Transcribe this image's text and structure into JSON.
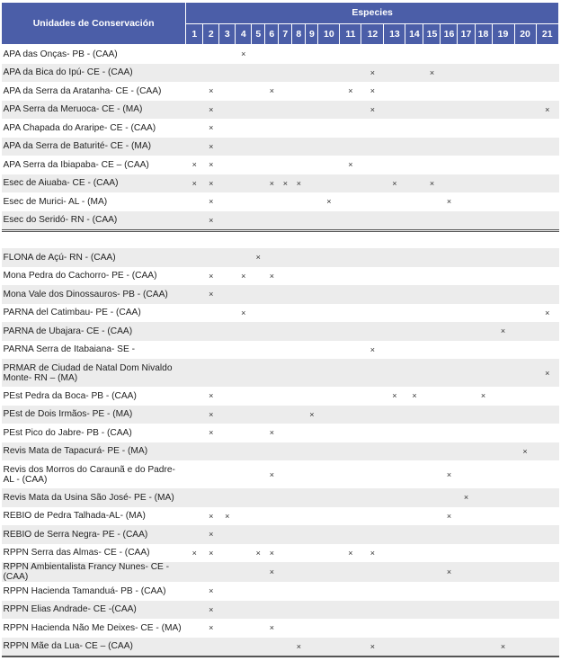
{
  "header": {
    "label_column": "Unidades de Conservación",
    "species_group": "Especies",
    "species_numbers": [
      "1",
      "2",
      "3",
      "4",
      "5",
      "6",
      "7",
      "8",
      "9",
      "10",
      "11",
      "12",
      "13",
      "14",
      "15",
      "16",
      "17",
      "18",
      "19",
      "20",
      "21"
    ]
  },
  "mark_symbol": "×",
  "colors": {
    "header_bg": "#4b5ea8",
    "row_alt": "#ececec"
  },
  "sections": [
    {
      "rows": [
        {
          "name": "APA das Onças- PB - (CAA)",
          "marks": [
            4
          ]
        },
        {
          "name": "APA da Bica do Ipú- CE - (CAA)",
          "marks": [
            12,
            15
          ]
        },
        {
          "name": "APA da Serra da Aratanha- CE - (CAA)",
          "marks": [
            2,
            6,
            11,
            12
          ]
        },
        {
          "name": "APA Serra da Meruoca- CE - (MA)",
          "marks": [
            2,
            12,
            21
          ]
        },
        {
          "name": "APA Chapada do Araripe- CE - (CAA)",
          "marks": [
            2
          ]
        },
        {
          "name": "APA da Serra de Baturité- CE - (MA)",
          "marks": [
            2
          ]
        },
        {
          "name": "APA Serra da Ibiapaba- CE – (CAA)",
          "marks": [
            1,
            2,
            11
          ]
        },
        {
          "name": "Esec de Aiuaba- CE - (CAA)",
          "marks": [
            1,
            2,
            6,
            7,
            8,
            13,
            15
          ]
        },
        {
          "name": "Esec de Murici- AL - (MA)",
          "marks": [
            2,
            10,
            16
          ]
        },
        {
          "name": "Esec do Seridó- RN - (CAA)",
          "marks": [
            2
          ]
        }
      ]
    },
    {
      "rows": [
        {
          "name": "FLONA de Açú- RN - (CAA)",
          "marks": [
            5
          ]
        },
        {
          "name": "Mona Pedra do Cachorro- PE - (CAA)",
          "marks": [
            2,
            4,
            6
          ]
        },
        {
          "name": "Mona Vale dos Dinossauros- PB - (CAA)",
          "marks": [
            2
          ]
        },
        {
          "name": "PARNA del Catimbau- PE - (CAA)",
          "marks": [
            4,
            21
          ]
        },
        {
          "name": "PARNA de Ubajara- CE - (CAA)",
          "marks": [
            19
          ]
        },
        {
          "name": "PARNA Serra de Itabaiana- SE -",
          "marks": [
            12
          ]
        },
        {
          "name": "PRMAR de Ciudad de Natal Dom Nivaldo Monte- RN – (MA)",
          "marks": [
            21
          ],
          "tall": true
        },
        {
          "name": "PEst Pedra da Boca- PB - (CAA)",
          "marks": [
            2,
            13,
            14,
            18
          ]
        },
        {
          "name": "PEst de Dois Irmãos- PE - (MA)",
          "marks": [
            2,
            9
          ]
        },
        {
          "name": "PEst Pico do Jabre- PB - (CAA)",
          "marks": [
            2,
            6
          ]
        },
        {
          "name": "Revis Mata de Tapacurá- PE - (MA)",
          "marks": [
            20
          ]
        },
        {
          "name": "Revis dos Morros do Caraunã e do Padre- AL - (CAA)",
          "marks": [
            6,
            16
          ],
          "tall": true
        },
        {
          "name": "Revis Mata da Usina São José- PE - (MA)",
          "marks": [
            17
          ]
        },
        {
          "name": "REBIO de Pedra Talhada-AL- (MA)",
          "marks": [
            2,
            3,
            16
          ]
        },
        {
          "name": "REBIO de Serra Negra- PE - (CAA)",
          "marks": [
            2
          ]
        },
        {
          "name": "RPPN Serra das Almas- CE - (CAA)",
          "marks": [
            1,
            2,
            5,
            6,
            11,
            12
          ]
        },
        {
          "name": "RPPN Ambientalista Francy Nunes- CE - (CAA)",
          "marks": [
            6,
            16
          ]
        },
        {
          "name": "RPPN Hacienda Tamanduá- PB - (CAA)",
          "marks": [
            2
          ]
        },
        {
          "name": "RPPN Elias Andrade- CE -(CAA)",
          "marks": [
            2
          ]
        },
        {
          "name": "RPPN Hacienda Não Me Deixes- CE - (MA)",
          "marks": [
            2,
            6
          ]
        },
        {
          "name": "RPPN Mãe da Lua- CE – (CAA)",
          "marks": [
            8,
            12,
            19
          ]
        }
      ]
    }
  ]
}
